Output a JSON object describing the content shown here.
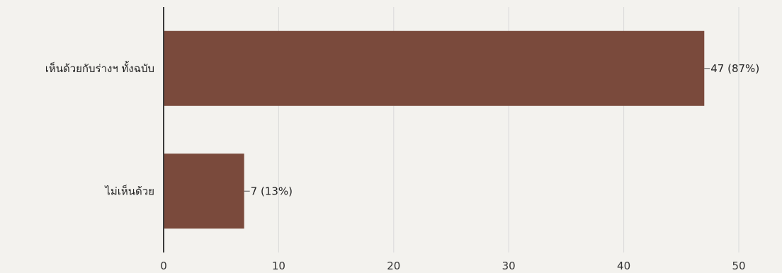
{
  "chart_data": {
    "type": "bar",
    "orientation": "horizontal",
    "categories": [
      "เห็นด้วยกับร่างฯ ทั้งฉบับ",
      "ไม่เห็นด้วย"
    ],
    "values": [
      47,
      7
    ],
    "percent_labels": [
      "47 (87%)",
      "7 (13%)"
    ],
    "title": "",
    "xlabel": "",
    "ylabel": "",
    "xlim": [
      0,
      50
    ],
    "ticks": [
      0,
      10,
      20,
      30,
      40,
      50
    ],
    "tick_labels": [
      "0",
      "10",
      "20",
      "30",
      "40",
      "50"
    ],
    "grid": true,
    "legend": "none",
    "bar_color": "#7a4a3c",
    "grid_color": "#d9d9d9",
    "axis_color": "#3a3a3a"
  }
}
